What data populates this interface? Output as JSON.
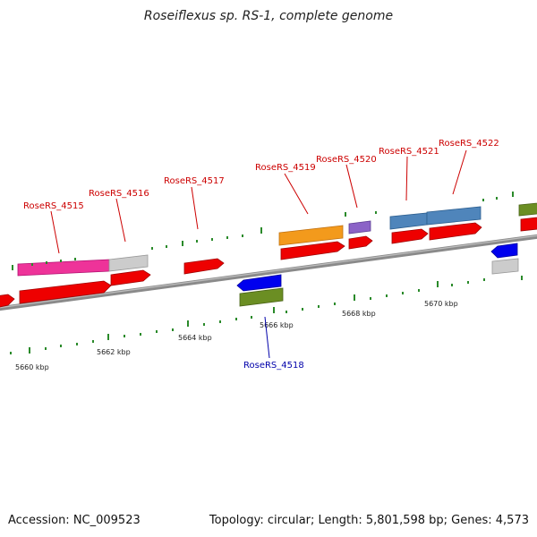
{
  "title": "Roseiflexus sp. RS-1, complete genome",
  "footer": {
    "accession": "Accession: NC_009523",
    "summary": "Topology: circular; Length: 5,801,598 bp; Genes: 4,573"
  },
  "colors": {
    "forward_label": "#cc0000",
    "reverse_label": "#0000aa",
    "cds": "#ee0000",
    "tick": "#2a8a2a",
    "backbone": "#8a8a8a"
  },
  "scale_labels": [
    "5660 kbp",
    "5662 kbp",
    "5664 kbp",
    "5666 kbp",
    "5668 kbp",
    "5670 kbp"
  ],
  "gene_labels": [
    {
      "id": "g4515",
      "text": "RoseRS_4515",
      "strand": "forward"
    },
    {
      "id": "g4516",
      "text": "RoseRS_4516",
      "strand": "forward"
    },
    {
      "id": "g4517",
      "text": "RoseRS_4517",
      "strand": "forward"
    },
    {
      "id": "g4518",
      "text": "RoseRS_4518",
      "strand": "reverse"
    },
    {
      "id": "g4519",
      "text": "RoseRS_4519",
      "strand": "forward"
    },
    {
      "id": "g4520",
      "text": "RoseRS_4520",
      "strand": "forward"
    },
    {
      "id": "g4521",
      "text": "RoseRS_4521",
      "strand": "forward"
    },
    {
      "id": "g4522",
      "text": "RoseRS_4522",
      "strand": "forward"
    }
  ]
}
